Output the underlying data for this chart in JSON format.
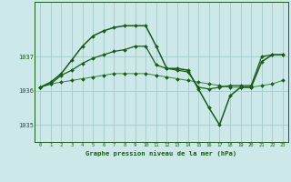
{
  "title": "Graphe pression niveau de la mer (hPa)",
  "bg_color": "#cce8e8",
  "grid_color": "#aacfcf",
  "line_color_dark": "#1a5c1a",
  "line_color_mid": "#2e8b2e",
  "xlim": [
    -0.5,
    23.5
  ],
  "ylim": [
    1034.5,
    1038.6
  ],
  "yticks": [
    1035,
    1036,
    1037
  ],
  "xticks": [
    0,
    1,
    2,
    3,
    4,
    5,
    6,
    7,
    8,
    9,
    10,
    11,
    12,
    13,
    14,
    15,
    16,
    17,
    18,
    19,
    20,
    21,
    22,
    23
  ],
  "series1_x": [
    0,
    1,
    2,
    3,
    4,
    5,
    6,
    7,
    8,
    9,
    10,
    11,
    12,
    13,
    14,
    15,
    16,
    17,
    18,
    19,
    20,
    21,
    22,
    23
  ],
  "series1_y": [
    1036.1,
    1036.2,
    1036.25,
    1036.3,
    1036.35,
    1036.4,
    1036.45,
    1036.5,
    1036.5,
    1036.5,
    1036.5,
    1036.45,
    1036.4,
    1036.35,
    1036.3,
    1036.25,
    1036.2,
    1036.15,
    1036.1,
    1036.1,
    1036.1,
    1036.15,
    1036.2,
    1036.3
  ],
  "series2_x": [
    0,
    1,
    2,
    3,
    4,
    5,
    6,
    7,
    8,
    9,
    10,
    11,
    12,
    13,
    14,
    15,
    16,
    17,
    18,
    19,
    20,
    21,
    22,
    23
  ],
  "series2_y": [
    1036.1,
    1036.2,
    1036.45,
    1036.6,
    1036.8,
    1036.95,
    1037.05,
    1037.15,
    1037.2,
    1037.3,
    1037.3,
    1036.75,
    1036.65,
    1036.6,
    1036.55,
    1036.1,
    1036.05,
    1036.1,
    1036.15,
    1036.15,
    1036.15,
    1037.0,
    1037.05,
    1037.05
  ],
  "series3_x": [
    0,
    1,
    2,
    3,
    4,
    5,
    6,
    7,
    8,
    9,
    10,
    11,
    12,
    13,
    14,
    15,
    16,
    17,
    18,
    19,
    20,
    21,
    22,
    23
  ],
  "series3_y": [
    1036.1,
    1036.25,
    1036.5,
    1036.9,
    1037.3,
    1037.6,
    1037.75,
    1037.85,
    1037.9,
    1037.9,
    1037.9,
    1037.3,
    1036.65,
    1036.65,
    1036.6,
    1036.05,
    1035.5,
    1035.0,
    1035.85,
    1036.1,
    1036.1,
    1036.85,
    1037.05,
    1037.05
  ]
}
